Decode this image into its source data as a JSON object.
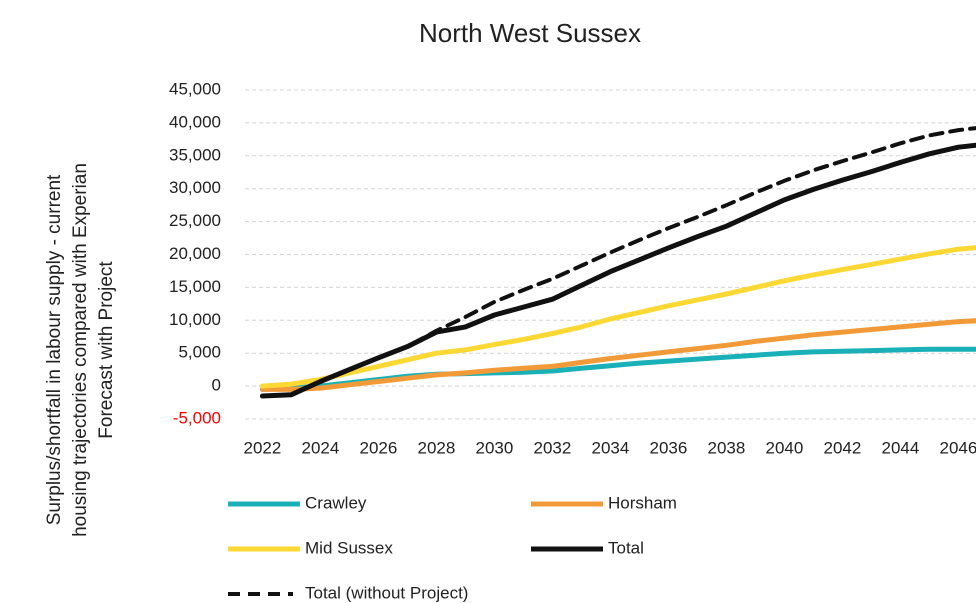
{
  "chart_data": {
    "type": "line",
    "title": "North West Sussex",
    "ylabel": [
      "Surplus/shortfall in labour supply - current",
      "housing trajectories compared with Experian",
      "Forecast with Project"
    ],
    "x": [
      2022,
      2023,
      2024,
      2025,
      2026,
      2027,
      2028,
      2029,
      2030,
      2031,
      2032,
      2033,
      2034,
      2035,
      2036,
      2037,
      2038,
      2039,
      2040,
      2041,
      2042,
      2043,
      2044,
      2045,
      2046,
      2047
    ],
    "xlim": [
      2021.4,
      2047.4
    ],
    "xticks": [
      2022,
      2024,
      2026,
      2028,
      2030,
      2032,
      2034,
      2036,
      2038,
      2040,
      2042,
      2044,
      2046
    ],
    "ylim": [
      -5000,
      45000
    ],
    "yticks": [
      {
        "value": -5000,
        "label": "-5,000"
      },
      0,
      {
        "value": 5000,
        "label": "5,000"
      },
      {
        "value": 10000,
        "label": "10,000"
      },
      {
        "value": 15000,
        "label": "15,000"
      },
      {
        "value": 20000,
        "label": "20,000"
      },
      {
        "value": 25000,
        "label": "25,000"
      },
      {
        "value": 30000,
        "label": "30,000"
      },
      {
        "value": 35000,
        "label": "35,000"
      },
      {
        "value": 40000,
        "label": "40,000"
      },
      {
        "value": 45000,
        "label": "45,000"
      }
    ],
    "negative_tick_color": "#ff0000",
    "grid": true,
    "legend": "bottom",
    "series": [
      {
        "name": "Crawley",
        "color": "#1ab0b8",
        "dash": false,
        "values": [
          -500,
          -300,
          0,
          500,
          1000,
          1500,
          1800,
          1900,
          2000,
          2100,
          2300,
          2700,
          3100,
          3500,
          3800,
          4100,
          4400,
          4700,
          5000,
          5200,
          5300,
          5400,
          5500,
          5600,
          5600,
          5600
        ]
      },
      {
        "name": "Horsham",
        "color": "#f39a38",
        "dash": false,
        "values": [
          -500,
          -500,
          -300,
          200,
          700,
          1200,
          1700,
          2000,
          2400,
          2700,
          3000,
          3600,
          4200,
          4700,
          5200,
          5700,
          6200,
          6800,
          7300,
          7800,
          8200,
          8600,
          9000,
          9400,
          9800,
          10000
        ]
      },
      {
        "name": "Mid Sussex",
        "color": "#fcd835",
        "dash": false,
        "values": [
          0,
          300,
          1000,
          2000,
          3000,
          4000,
          5000,
          5500,
          6300,
          7100,
          8000,
          9000,
          10200,
          11200,
          12200,
          13100,
          14000,
          15000,
          16000,
          16900,
          17700,
          18500,
          19300,
          20100,
          20800,
          21200
        ]
      },
      {
        "name": "Total",
        "color": "#111111",
        "dash": false,
        "values": [
          -1500,
          -1300,
          700,
          2500,
          4300,
          6000,
          8200,
          9000,
          10800,
          12000,
          13200,
          15300,
          17400,
          19200,
          21000,
          22700,
          24300,
          26300,
          28300,
          29900,
          31300,
          32600,
          34000,
          35300,
          36300,
          36800
        ]
      },
      {
        "name": "Total (without Project)",
        "color": "#111111",
        "dash": true,
        "values": [
          -1500,
          -1300,
          700,
          2500,
          4300,
          6000,
          8400,
          10500,
          12800,
          14600,
          16300,
          18300,
          20300,
          22200,
          24000,
          25700,
          27500,
          29400,
          31200,
          32800,
          34200,
          35500,
          36900,
          38100,
          38900,
          39400
        ]
      }
    ]
  }
}
